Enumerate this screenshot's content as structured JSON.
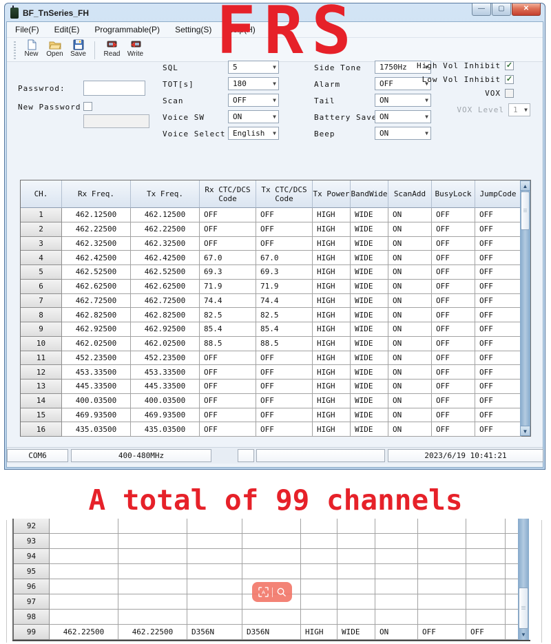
{
  "colors": {
    "annotation_red": "#e62129",
    "overlay_coral": "#f27667",
    "titlebar_blue": "#c6dbf0"
  },
  "window": {
    "title": "BF_TnSeries_FH",
    "controls": {
      "minimize": "—",
      "maximize": "▢",
      "close": "✕"
    },
    "menu": [
      {
        "label": "File(F)"
      },
      {
        "label": "Edit(E)"
      },
      {
        "label": "Programmable(P)"
      },
      {
        "label": "Setting(S)"
      },
      {
        "label": "Help(H)"
      }
    ],
    "toolbar": [
      {
        "label": "New"
      },
      {
        "label": "Open"
      },
      {
        "label": "Save"
      },
      {
        "label": "Read"
      },
      {
        "label": "Write"
      }
    ]
  },
  "password": {
    "label": "Passwrod:",
    "value": "",
    "new_label": "New Password",
    "new_checked": false,
    "new_value": ""
  },
  "settings": {
    "left": [
      {
        "label": "SQL",
        "value": "5"
      },
      {
        "label": "TOT[s]",
        "value": "180"
      },
      {
        "label": "Scan",
        "value": "OFF"
      },
      {
        "label": "Voice SW",
        "value": "ON"
      },
      {
        "label": "Voice Select",
        "value": "English"
      }
    ],
    "right": [
      {
        "label": "Side Tone",
        "value": "1750Hz"
      },
      {
        "label": "Alarm",
        "value": "OFF"
      },
      {
        "label": "Tail",
        "value": "ON"
      },
      {
        "label": "Battery Save",
        "value": "ON"
      },
      {
        "label": "Beep",
        "value": "ON"
      }
    ],
    "inhibit": [
      {
        "label": "High Vol Inhibit",
        "checked": true
      },
      {
        "label": "Low Vol Inhibit",
        "checked": true
      },
      {
        "label": "VOX",
        "checked": false
      }
    ],
    "vox_level": {
      "label": "VOX Level",
      "value": "1",
      "enabled": false
    }
  },
  "channel_table": {
    "headers": [
      "CH.",
      "Rx Freq.",
      "Tx Freq.",
      "Rx CTC/DCS Code",
      "Tx CTC/DCS Code",
      "Tx Power",
      "BandWide",
      "ScanAdd",
      "BusyLock",
      "JumpCode"
    ],
    "rows": [
      [
        "1",
        "462.12500",
        "462.12500",
        "OFF",
        "OFF",
        "HIGH",
        "WIDE",
        "ON",
        "OFF",
        "OFF"
      ],
      [
        "2",
        "462.22500",
        "462.22500",
        "OFF",
        "OFF",
        "HIGH",
        "WIDE",
        "ON",
        "OFF",
        "OFF"
      ],
      [
        "3",
        "462.32500",
        "462.32500",
        "OFF",
        "OFF",
        "HIGH",
        "WIDE",
        "ON",
        "OFF",
        "OFF"
      ],
      [
        "4",
        "462.42500",
        "462.42500",
        "67.0",
        "67.0",
        "HIGH",
        "WIDE",
        "ON",
        "OFF",
        "OFF"
      ],
      [
        "5",
        "462.52500",
        "462.52500",
        "69.3",
        "69.3",
        "HIGH",
        "WIDE",
        "ON",
        "OFF",
        "OFF"
      ],
      [
        "6",
        "462.62500",
        "462.62500",
        "71.9",
        "71.9",
        "HIGH",
        "WIDE",
        "ON",
        "OFF",
        "OFF"
      ],
      [
        "7",
        "462.72500",
        "462.72500",
        "74.4",
        "74.4",
        "HIGH",
        "WIDE",
        "ON",
        "OFF",
        "OFF"
      ],
      [
        "8",
        "462.82500",
        "462.82500",
        "82.5",
        "82.5",
        "HIGH",
        "WIDE",
        "ON",
        "OFF",
        "OFF"
      ],
      [
        "9",
        "462.92500",
        "462.92500",
        "85.4",
        "85.4",
        "HIGH",
        "WIDE",
        "ON",
        "OFF",
        "OFF"
      ],
      [
        "10",
        "462.02500",
        "462.02500",
        "88.5",
        "88.5",
        "HIGH",
        "WIDE",
        "ON",
        "OFF",
        "OFF"
      ],
      [
        "11",
        "452.23500",
        "452.23500",
        "OFF",
        "OFF",
        "HIGH",
        "WIDE",
        "ON",
        "OFF",
        "OFF"
      ],
      [
        "12",
        "453.33500",
        "453.33500",
        "OFF",
        "OFF",
        "HIGH",
        "WIDE",
        "ON",
        "OFF",
        "OFF"
      ],
      [
        "13",
        "445.33500",
        "445.33500",
        "OFF",
        "OFF",
        "HIGH",
        "WIDE",
        "ON",
        "OFF",
        "OFF"
      ],
      [
        "14",
        "400.03500",
        "400.03500",
        "OFF",
        "OFF",
        "HIGH",
        "WIDE",
        "ON",
        "OFF",
        "OFF"
      ],
      [
        "15",
        "469.93500",
        "469.93500",
        "OFF",
        "OFF",
        "HIGH",
        "WIDE",
        "ON",
        "OFF",
        "OFF"
      ],
      [
        "16",
        "435.03500",
        "435.03500",
        "OFF",
        "OFF",
        "HIGH",
        "WIDE",
        "ON",
        "OFF",
        "OFF"
      ]
    ]
  },
  "status_bar": {
    "port": "COM6",
    "band": "400-480MHz",
    "datetime": "2023/6/19 10:41:21"
  },
  "annotations": {
    "frs": "FRS",
    "total": "A total of 99 channels"
  },
  "bottom_table": {
    "rows": [
      [
        "92",
        "",
        "",
        "",
        "",
        "",
        "",
        "",
        "",
        ""
      ],
      [
        "93",
        "",
        "",
        "",
        "",
        "",
        "",
        "",
        "",
        ""
      ],
      [
        "94",
        "",
        "",
        "",
        "",
        "",
        "",
        "",
        "",
        ""
      ],
      [
        "95",
        "",
        "",
        "",
        "",
        "",
        "",
        "",
        "",
        ""
      ],
      [
        "96",
        "",
        "",
        "",
        "",
        "",
        "",
        "",
        "",
        ""
      ],
      [
        "97",
        "",
        "",
        "",
        "",
        "",
        "",
        "",
        "",
        ""
      ],
      [
        "98",
        "",
        "",
        "",
        "",
        "",
        "",
        "",
        "",
        ""
      ],
      [
        "99",
        "462.22500",
        "462.22500",
        "D356N",
        "D356N",
        "HIGH",
        "WIDE",
        "ON",
        "OFF",
        "OFF"
      ]
    ]
  }
}
